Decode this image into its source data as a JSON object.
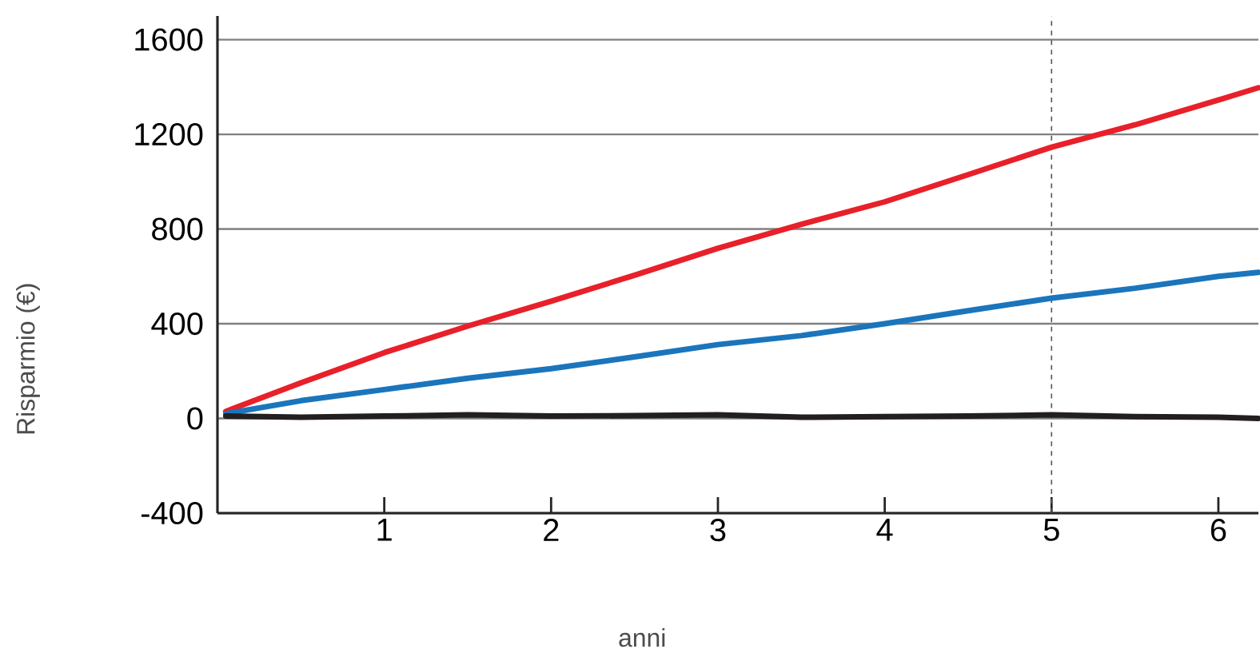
{
  "chart_data": {
    "type": "line",
    "xlabel": "anni",
    "ylabel": "Risparmio (€)",
    "xlim": [
      0,
      6.24
    ],
    "ylim": [
      -400,
      1700
    ],
    "xticks": [
      1,
      2,
      3,
      4,
      5,
      6
    ],
    "yticks": [
      -400,
      0,
      400,
      800,
      1200,
      1600
    ],
    "grid": "y",
    "line_style": "solid",
    "marker": "none",
    "series": [
      {
        "color": "#e8202a",
        "x": [
          0.05,
          0.5,
          1,
          1.5,
          2,
          2.5,
          3,
          3.5,
          4,
          4.5,
          5,
          5.5,
          6,
          6.24
        ],
        "values": [
          30,
          150,
          278,
          390,
          495,
          605,
          719,
          820,
          915,
          1030,
          1146,
          1240,
          1345,
          1397
        ]
      },
      {
        "color": "#1a75bc",
        "x": [
          0.05,
          0.5,
          1,
          1.5,
          2,
          2.5,
          3,
          3.5,
          4,
          4.5,
          5,
          5.5,
          6,
          6.24
        ],
        "values": [
          20,
          75,
          122,
          170,
          210,
          260,
          312,
          350,
          400,
          455,
          508,
          550,
          600,
          617
        ]
      },
      {
        "color": "#231f20",
        "x": [
          0.05,
          0.5,
          1,
          1.5,
          2,
          2.5,
          3,
          3.5,
          4,
          4.5,
          5,
          5.5,
          6,
          6.24
        ],
        "values": [
          10,
          5,
          10,
          15,
          10,
          12,
          15,
          5,
          8,
          10,
          15,
          8,
          5,
          0
        ]
      }
    ],
    "ref_lines": [
      {
        "axis": "x",
        "value": 5,
        "color": "#555555",
        "line_style": "dashed"
      }
    ]
  }
}
